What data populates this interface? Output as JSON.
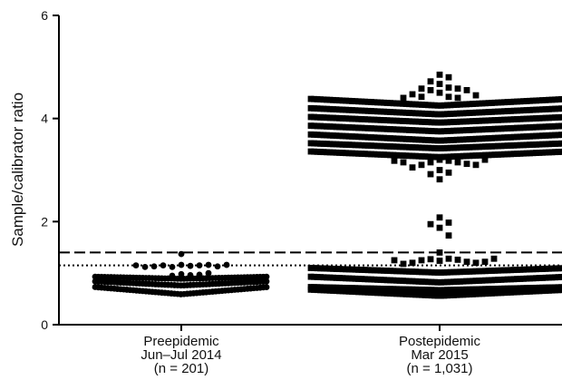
{
  "chart_data": {
    "type": "scatter",
    "ylabel": "Sample/calibrator ratio",
    "ylim": [
      0,
      6
    ],
    "yticks": [
      "0",
      "2",
      "4",
      "6"
    ],
    "thresholds": [
      {
        "style": "dashed",
        "value": 1.4
      },
      {
        "style": "dotted",
        "value": 1.15
      }
    ],
    "groups": [
      {
        "label_lines": [
          "Preepidemic",
          "Jun–Jul 2014",
          "(n = 201)"
        ],
        "marker": "circle",
        "dense_bands": [
          {
            "center": 0.89,
            "edge": 0.93
          },
          {
            "center": 0.76,
            "edge": 0.84
          },
          {
            "center": 0.59,
            "edge": 0.73
          }
        ],
        "points": [
          1.37,
          1.16,
          1.14,
          1.12,
          1.15,
          1.15,
          1.16,
          1.13,
          1.13,
          1.12,
          1.16,
          1.15,
          0.98,
          1.0,
          0.96,
          0.97,
          0.95
        ]
      },
      {
        "label_lines": [
          "Postepidemic",
          "Mar 2015",
          "(n = 1,031)"
        ],
        "marker": "square",
        "dense_bands": [
          {
            "center": 4.25,
            "edge": 4.38
          },
          {
            "center": 4.08,
            "edge": 4.2
          },
          {
            "center": 3.92,
            "edge": 4.03
          },
          {
            "center": 3.75,
            "edge": 3.86
          },
          {
            "center": 3.57,
            "edge": 3.69
          },
          {
            "center": 3.42,
            "edge": 3.52
          },
          {
            "center": 3.25,
            "edge": 3.36
          },
          {
            "center": 1.01,
            "edge": 1.1
          },
          {
            "center": 0.82,
            "edge": 0.93
          },
          {
            "center": 0.67,
            "edge": 0.73
          },
          {
            "center": 0.56,
            "edge": 0.68
          }
        ],
        "points": [
          4.85,
          4.8,
          4.72,
          4.67,
          4.6,
          4.58,
          4.58,
          4.55,
          4.55,
          4.5,
          4.47,
          4.45,
          4.42,
          4.4,
          4.42,
          4.4,
          3.2,
          3.18,
          3.15,
          3.15,
          3.1,
          3.12,
          3.05,
          3.0,
          2.95,
          2.92,
          2.82,
          3.1,
          3.15,
          3.2,
          3.18,
          2.08,
          1.98,
          1.95,
          1.88,
          1.73,
          1.4,
          1.28,
          1.27,
          1.26,
          1.25,
          1.24,
          1.22,
          1.2,
          1.2,
          1.18,
          1.22,
          1.25,
          1.28
        ]
      }
    ]
  }
}
